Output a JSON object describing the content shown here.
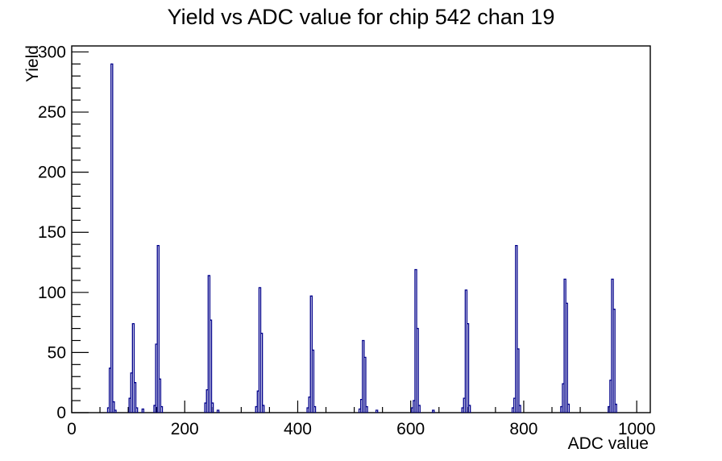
{
  "chart_data": {
    "type": "bar",
    "subtype": "root-histogram-spikes",
    "title": "Yield vs ADC value for chip 542 chan 19",
    "xlabel": "ADC value",
    "ylabel": "Yield",
    "xlim": [
      0,
      1024
    ],
    "ylim": [
      0,
      305
    ],
    "x_ticks": [
      0,
      200,
      400,
      600,
      800,
      1000
    ],
    "x_minor_step": 50,
    "y_ticks": [
      0,
      50,
      100,
      150,
      200,
      250,
      300
    ],
    "y_minor_step": 10,
    "grid": false,
    "legend": false,
    "background_color": "#ffffff",
    "axis_color": "#000000",
    "line_color": "#00008B",
    "bin_width": 3,
    "bins": [
      [
        65,
        4
      ],
      [
        68,
        37
      ],
      [
        71,
        290
      ],
      [
        74,
        9
      ],
      [
        77,
        2
      ],
      [
        103,
        12
      ],
      [
        106,
        33
      ],
      [
        109,
        74
      ],
      [
        112,
        25
      ],
      [
        115,
        4
      ],
      [
        126,
        3
      ],
      [
        147,
        6
      ],
      [
        150,
        57
      ],
      [
        153,
        139
      ],
      [
        156,
        28
      ],
      [
        159,
        5
      ],
      [
        237,
        8
      ],
      [
        240,
        19
      ],
      [
        243,
        114
      ],
      [
        246,
        77
      ],
      [
        249,
        8
      ],
      [
        259,
        2
      ],
      [
        327,
        5
      ],
      [
        330,
        18
      ],
      [
        333,
        104
      ],
      [
        336,
        66
      ],
      [
        339,
        6
      ],
      [
        418,
        4
      ],
      [
        421,
        13
      ],
      [
        424,
        97
      ],
      [
        427,
        52
      ],
      [
        430,
        5
      ],
      [
        510,
        3
      ],
      [
        513,
        11
      ],
      [
        516,
        60
      ],
      [
        519,
        46
      ],
      [
        522,
        5
      ],
      [
        540,
        2
      ],
      [
        603,
        4
      ],
      [
        606,
        10
      ],
      [
        609,
        119
      ],
      [
        612,
        70
      ],
      [
        615,
        6
      ],
      [
        640,
        2
      ],
      [
        692,
        4
      ],
      [
        695,
        12
      ],
      [
        698,
        102
      ],
      [
        701,
        74
      ],
      [
        704,
        6
      ],
      [
        781,
        4
      ],
      [
        784,
        12
      ],
      [
        787,
        139
      ],
      [
        790,
        53
      ],
      [
        793,
        6
      ],
      [
        867,
        5
      ],
      [
        870,
        24
      ],
      [
        873,
        111
      ],
      [
        876,
        91
      ],
      [
        879,
        7
      ],
      [
        951,
        5
      ],
      [
        954,
        27
      ],
      [
        957,
        111
      ],
      [
        960,
        86
      ],
      [
        963,
        7
      ]
    ],
    "peaks": [
      {
        "adc": 71,
        "yield": 290
      },
      {
        "adc": 109,
        "yield": 74
      },
      {
        "adc": 153,
        "yield": 139
      },
      {
        "adc": 243,
        "yield": 114
      },
      {
        "adc": 333,
        "yield": 104
      },
      {
        "adc": 424,
        "yield": 97
      },
      {
        "adc": 516,
        "yield": 60
      },
      {
        "adc": 609,
        "yield": 119
      },
      {
        "adc": 698,
        "yield": 102
      },
      {
        "adc": 787,
        "yield": 139
      },
      {
        "adc": 873,
        "yield": 111
      },
      {
        "adc": 957,
        "yield": 111
      }
    ]
  }
}
